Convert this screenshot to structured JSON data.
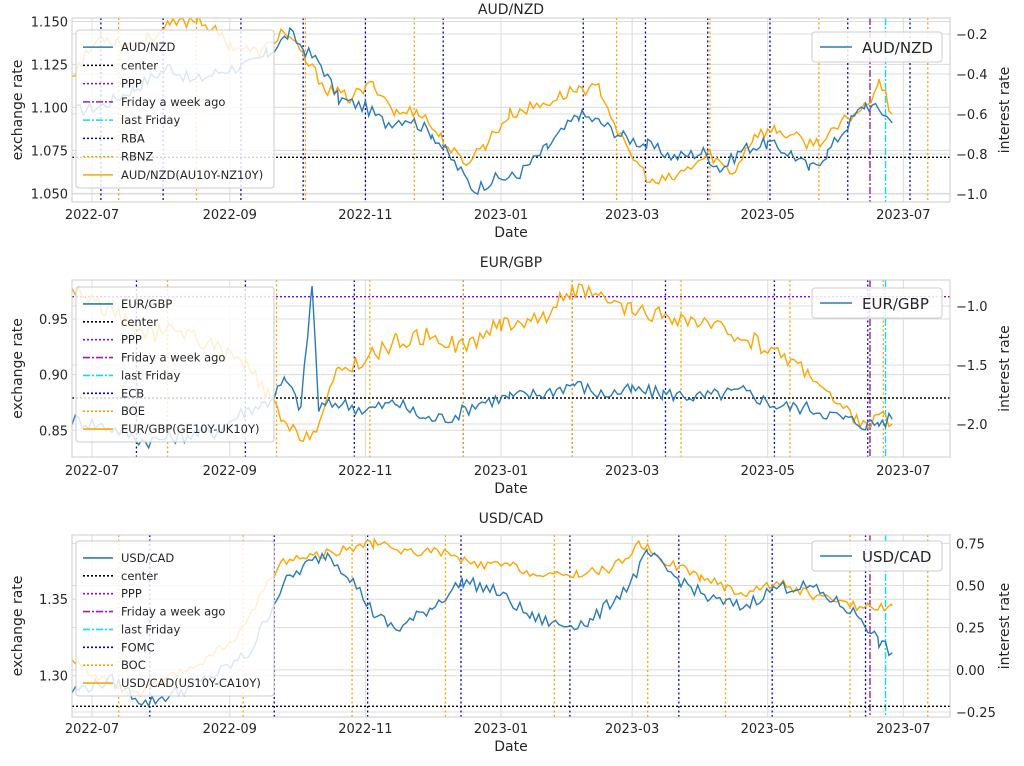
{
  "chart_data": [
    {
      "type": "line",
      "title": "AUD/NZD",
      "xlabel": "Date",
      "ylabel": "exchange rate",
      "y2label": "interest rate",
      "xlim": [
        "2022-06-22",
        "2023-07-22"
      ],
      "ylim": [
        1.045,
        1.152
      ],
      "y2lim": [
        -1.04,
        -0.12
      ],
      "xticks": [
        "2022-07",
        "2022-09",
        "2022-11",
        "2023-01",
        "2023-03",
        "2023-05",
        "2023-07"
      ],
      "yticks": [
        "1.050",
        "1.075",
        "1.100",
        "1.125",
        "1.150"
      ],
      "y2ticks": [
        "−1.0",
        "−0.8",
        "−0.6",
        "−0.4",
        "−0.2"
      ],
      "grid": true,
      "legend_left": [
        "AUD/NZD",
        "center",
        "PPP",
        "Friday a week ago",
        "last Friday",
        "RBA",
        "RBNZ",
        "AUD/NZD(AU10Y-NZ10Y)"
      ],
      "legend_right": [
        "AUD/NZD"
      ],
      "center": 1.071,
      "ppp": null,
      "friday_week_ago": "2023-06-16",
      "last_friday": "2023-06-23",
      "bank1_dates": [
        "2022-07-05",
        "2022-08-02",
        "2022-09-06",
        "2022-10-04",
        "2022-11-01",
        "2022-12-06",
        "2023-02-07",
        "2023-03-07",
        "2023-04-04",
        "2023-05-02",
        "2023-06-06",
        "2023-07-04"
      ],
      "bank2_dates": [
        "2022-07-13",
        "2022-08-17",
        "2022-10-05",
        "2022-11-23",
        "2023-02-22",
        "2023-04-05",
        "2023-05-24",
        "2023-07-12"
      ],
      "fx_anchors": [
        [
          "2022-06-24",
          1.098
        ],
        [
          "2022-07-06",
          1.101
        ],
        [
          "2022-07-20",
          1.111
        ],
        [
          "2022-08-05",
          1.124
        ],
        [
          "2022-08-15",
          1.115
        ],
        [
          "2022-08-30",
          1.122
        ],
        [
          "2022-09-10",
          1.125
        ],
        [
          "2022-09-18",
          1.131
        ],
        [
          "2022-09-28",
          1.143
        ],
        [
          "2022-10-05",
          1.133
        ],
        [
          "2022-10-12",
          1.125
        ],
        [
          "2022-10-20",
          1.105
        ],
        [
          "2022-11-01",
          1.1
        ],
        [
          "2022-11-10",
          1.091
        ],
        [
          "2022-11-20",
          1.094
        ],
        [
          "2022-12-01",
          1.085
        ],
        [
          "2022-12-08",
          1.073
        ],
        [
          "2022-12-20",
          1.052
        ],
        [
          "2022-12-28",
          1.058
        ],
        [
          "2023-01-08",
          1.06
        ],
        [
          "2023-01-22",
          1.077
        ],
        [
          "2023-02-05",
          1.096
        ],
        [
          "2023-02-15",
          1.091
        ],
        [
          "2023-02-25",
          1.083
        ],
        [
          "2023-03-08",
          1.078
        ],
        [
          "2023-03-20",
          1.071
        ],
        [
          "2023-04-02",
          1.074
        ],
        [
          "2023-04-10",
          1.064
        ],
        [
          "2023-04-20",
          1.076
        ],
        [
          "2023-05-01",
          1.079
        ],
        [
          "2023-05-12",
          1.073
        ],
        [
          "2023-05-20",
          1.064
        ],
        [
          "2023-05-28",
          1.074
        ],
        [
          "2023-06-06",
          1.09
        ],
        [
          "2023-06-14",
          1.102
        ],
        [
          "2023-06-22",
          1.097
        ],
        [
          "2023-06-26",
          1.091
        ]
      ],
      "ir_anchors": [
        [
          "2022-06-22",
          -0.4
        ],
        [
          "2022-07-05",
          -0.21
        ],
        [
          "2022-07-20",
          -0.26
        ],
        [
          "2022-08-05",
          -0.16
        ],
        [
          "2022-08-18",
          -0.12
        ],
        [
          "2022-09-01",
          -0.25
        ],
        [
          "2022-09-15",
          -0.3
        ],
        [
          "2022-09-25",
          -0.18
        ],
        [
          "2022-10-05",
          -0.33
        ],
        [
          "2022-10-15",
          -0.48
        ],
        [
          "2022-10-25",
          -0.52
        ],
        [
          "2022-11-05",
          -0.45
        ],
        [
          "2022-11-15",
          -0.6
        ],
        [
          "2022-11-25",
          -0.58
        ],
        [
          "2022-12-05",
          -0.72
        ],
        [
          "2022-12-15",
          -0.85
        ],
        [
          "2022-12-25",
          -0.75
        ],
        [
          "2023-01-05",
          -0.6
        ],
        [
          "2023-01-20",
          -0.55
        ],
        [
          "2023-02-05",
          -0.47
        ],
        [
          "2023-02-15",
          -0.48
        ],
        [
          "2023-02-25",
          -0.75
        ],
        [
          "2023-03-10",
          -0.95
        ],
        [
          "2023-03-20",
          -0.92
        ],
        [
          "2023-04-05",
          -0.8
        ],
        [
          "2023-04-15",
          -0.9
        ],
        [
          "2023-04-25",
          -0.7
        ],
        [
          "2023-05-05",
          -0.68
        ],
        [
          "2023-05-20",
          -0.75
        ],
        [
          "2023-05-28",
          -0.72
        ],
        [
          "2023-06-06",
          -0.62
        ],
        [
          "2023-06-15",
          -0.55
        ],
        [
          "2023-06-20",
          -0.42
        ],
        [
          "2023-06-26",
          -0.6
        ]
      ]
    },
    {
      "type": "line",
      "title": "EUR/GBP",
      "xlabel": "Date",
      "ylabel": "exchange rate",
      "y2label": "interest rate",
      "xlim": [
        "2022-06-22",
        "2023-07-22"
      ],
      "ylim": [
        0.826,
        0.985
      ],
      "y2lim": [
        -2.28,
        -0.78
      ],
      "xticks": [
        "2022-07",
        "2022-09",
        "2022-11",
        "2023-01",
        "2023-03",
        "2023-05",
        "2023-07"
      ],
      "yticks": [
        "0.85",
        "0.90",
        "0.95"
      ],
      "y2ticks": [
        "−2.0",
        "−1.5",
        "−1.0"
      ],
      "grid": true,
      "legend_left": [
        "EUR/GBP",
        "center",
        "PPP",
        "Friday a week ago",
        "last Friday",
        "ECB",
        "BOE",
        "EUR/GBP(GE10Y-UK10Y)"
      ],
      "legend_right": [
        "EUR/GBP"
      ],
      "center": 0.879,
      "ppp": 0.97,
      "friday_week_ago": "2023-06-16",
      "last_friday": "2023-06-23",
      "bank1_dates": [
        "2022-07-21",
        "2022-09-08",
        "2022-10-27",
        "2022-12-15",
        "2023-02-02",
        "2023-03-16",
        "2023-05-04",
        "2023-06-15"
      ],
      "bank2_dates": [
        "2022-08-04",
        "2022-09-22",
        "2022-11-03",
        "2022-12-15",
        "2023-02-02",
        "2023-03-23",
        "2023-05-11",
        "2023-06-22"
      ],
      "fx_anchors": [
        [
          "2022-06-22",
          0.86
        ],
        [
          "2022-07-10",
          0.852
        ],
        [
          "2022-07-25",
          0.84
        ],
        [
          "2022-08-10",
          0.845
        ],
        [
          "2022-08-25",
          0.848
        ],
        [
          "2022-09-08",
          0.868
        ],
        [
          "2022-09-18",
          0.875
        ],
        [
          "2022-09-26",
          0.895
        ],
        [
          "2022-10-03",
          0.87
        ],
        [
          "2022-10-08",
          0.98
        ],
        [
          "2022-10-11",
          0.87
        ],
        [
          "2022-10-20",
          0.875
        ],
        [
          "2022-11-01",
          0.868
        ],
        [
          "2022-11-15",
          0.875
        ],
        [
          "2022-11-28",
          0.86
        ],
        [
          "2022-12-10",
          0.862
        ],
        [
          "2022-12-22",
          0.875
        ],
        [
          "2023-01-05",
          0.88
        ],
        [
          "2023-01-20",
          0.883
        ],
        [
          "2023-02-03",
          0.892
        ],
        [
          "2023-02-15",
          0.882
        ],
        [
          "2023-03-01",
          0.886
        ],
        [
          "2023-03-15",
          0.883
        ],
        [
          "2023-04-01",
          0.88
        ],
        [
          "2023-04-20",
          0.885
        ],
        [
          "2023-05-05",
          0.872
        ],
        [
          "2023-05-20",
          0.87
        ],
        [
          "2023-06-05",
          0.86
        ],
        [
          "2023-06-15",
          0.855
        ],
        [
          "2023-06-20",
          0.857
        ],
        [
          "2023-06-26",
          0.86
        ]
      ],
      "ir_anchors": [
        [
          "2022-06-22",
          -0.85
        ],
        [
          "2022-07-10",
          -1.05
        ],
        [
          "2022-07-25",
          -1.25
        ],
        [
          "2022-08-10",
          -1.2
        ],
        [
          "2022-08-25",
          -1.35
        ],
        [
          "2022-09-08",
          -1.5
        ],
        [
          "2022-09-18",
          -1.75
        ],
        [
          "2022-09-25",
          -2.0
        ],
        [
          "2022-10-01",
          -2.1
        ],
        [
          "2022-10-10",
          -2.05
        ],
        [
          "2022-10-20",
          -1.55
        ],
        [
          "2022-11-01",
          -1.45
        ],
        [
          "2022-11-15",
          -1.3
        ],
        [
          "2022-12-01",
          -1.25
        ],
        [
          "2022-12-15",
          -1.35
        ],
        [
          "2023-01-01",
          -1.15
        ],
        [
          "2023-01-20",
          -1.1
        ],
        [
          "2023-02-02",
          -0.85
        ],
        [
          "2023-02-15",
          -0.95
        ],
        [
          "2023-03-01",
          -1.05
        ],
        [
          "2023-03-20",
          -1.1
        ],
        [
          "2023-04-10",
          -1.2
        ],
        [
          "2023-04-25",
          -1.3
        ],
        [
          "2023-05-10",
          -1.45
        ],
        [
          "2023-05-20",
          -1.55
        ],
        [
          "2023-06-01",
          -1.85
        ],
        [
          "2023-06-15",
          -2.0
        ],
        [
          "2023-06-20",
          -1.95
        ],
        [
          "2023-06-26",
          -2.0
        ]
      ]
    },
    {
      "type": "line",
      "title": "USD/CAD",
      "xlabel": "Date",
      "ylabel": "exchange rate",
      "y2label": "interest rate",
      "xlim": [
        "2022-06-22",
        "2023-07-22"
      ],
      "ylim": [
        1.273,
        1.392
      ],
      "y2lim": [
        -0.28,
        0.8
      ],
      "xticks": [
        "2022-07",
        "2022-09",
        "2022-11",
        "2023-01",
        "2023-03",
        "2023-05",
        "2023-07"
      ],
      "yticks": [
        "1.30",
        "1.35"
      ],
      "y2ticks": [
        "−0.25",
        "0.00",
        "0.25",
        "0.50",
        "0.75"
      ],
      "grid": true,
      "legend_left": [
        "USD/CAD",
        "center",
        "PPP",
        "Friday a week ago",
        "last Friday",
        "FOMC",
        "BOC",
        "USD/CAD(US10Y-CA10Y)"
      ],
      "legend_right": [
        "USD/CAD"
      ],
      "center": 1.28,
      "ppp": null,
      "friday_week_ago": "2023-06-16",
      "last_friday": "2023-06-23",
      "bank1_dates": [
        "2022-07-27",
        "2022-09-21",
        "2022-11-02",
        "2022-12-14",
        "2023-02-01",
        "2023-03-22",
        "2023-05-03",
        "2023-06-14"
      ],
      "bank2_dates": [
        "2022-07-13",
        "2022-09-07",
        "2022-10-26",
        "2022-12-07",
        "2023-01-25",
        "2023-03-08",
        "2023-04-12",
        "2023-06-07",
        "2023-07-12"
      ],
      "fx_anchors": [
        [
          "2022-06-22",
          1.29
        ],
        [
          "2022-07-10",
          1.297
        ],
        [
          "2022-07-25",
          1.282
        ],
        [
          "2022-08-10",
          1.29
        ],
        [
          "2022-08-25",
          1.3
        ],
        [
          "2022-09-10",
          1.315
        ],
        [
          "2022-09-25",
          1.36
        ],
        [
          "2022-10-05",
          1.372
        ],
        [
          "2022-10-15",
          1.38
        ],
        [
          "2022-10-25",
          1.365
        ],
        [
          "2022-11-05",
          1.34
        ],
        [
          "2022-11-15",
          1.33
        ],
        [
          "2022-12-01",
          1.345
        ],
        [
          "2022-12-15",
          1.362
        ],
        [
          "2022-12-30",
          1.355
        ],
        [
          "2023-01-15",
          1.338
        ],
        [
          "2023-01-28",
          1.333
        ],
        [
          "2023-02-10",
          1.335
        ],
        [
          "2023-02-28",
          1.36
        ],
        [
          "2023-03-08",
          1.38
        ],
        [
          "2023-03-20",
          1.365
        ],
        [
          "2023-04-05",
          1.35
        ],
        [
          "2023-04-20",
          1.345
        ],
        [
          "2023-05-05",
          1.358
        ],
        [
          "2023-05-20",
          1.358
        ],
        [
          "2023-06-01",
          1.348
        ],
        [
          "2023-06-12",
          1.338
        ],
        [
          "2023-06-20",
          1.322
        ],
        [
          "2023-06-26",
          1.315
        ]
      ],
      "ir_anchors": [
        [
          "2022-06-22",
          0.05
        ],
        [
          "2022-07-05",
          -0.05
        ],
        [
          "2022-07-20",
          -0.15
        ],
        [
          "2022-08-05",
          -0.05
        ],
        [
          "2022-08-20",
          0.05
        ],
        [
          "2022-09-05",
          0.2
        ],
        [
          "2022-09-15",
          0.45
        ],
        [
          "2022-09-25",
          0.65
        ],
        [
          "2022-10-10",
          0.68
        ],
        [
          "2022-10-25",
          0.72
        ],
        [
          "2022-11-05",
          0.75
        ],
        [
          "2022-11-20",
          0.7
        ],
        [
          "2022-12-05",
          0.7
        ],
        [
          "2022-12-20",
          0.62
        ],
        [
          "2023-01-05",
          0.62
        ],
        [
          "2023-01-20",
          0.55
        ],
        [
          "2023-02-05",
          0.57
        ],
        [
          "2023-02-20",
          0.6
        ],
        [
          "2023-03-05",
          0.75
        ],
        [
          "2023-03-15",
          0.65
        ],
        [
          "2023-04-01",
          0.55
        ],
        [
          "2023-04-20",
          0.45
        ],
        [
          "2023-05-05",
          0.52
        ],
        [
          "2023-05-20",
          0.45
        ],
        [
          "2023-06-01",
          0.4
        ],
        [
          "2023-06-15",
          0.37
        ],
        [
          "2023-06-26",
          0.38
        ]
      ]
    }
  ]
}
